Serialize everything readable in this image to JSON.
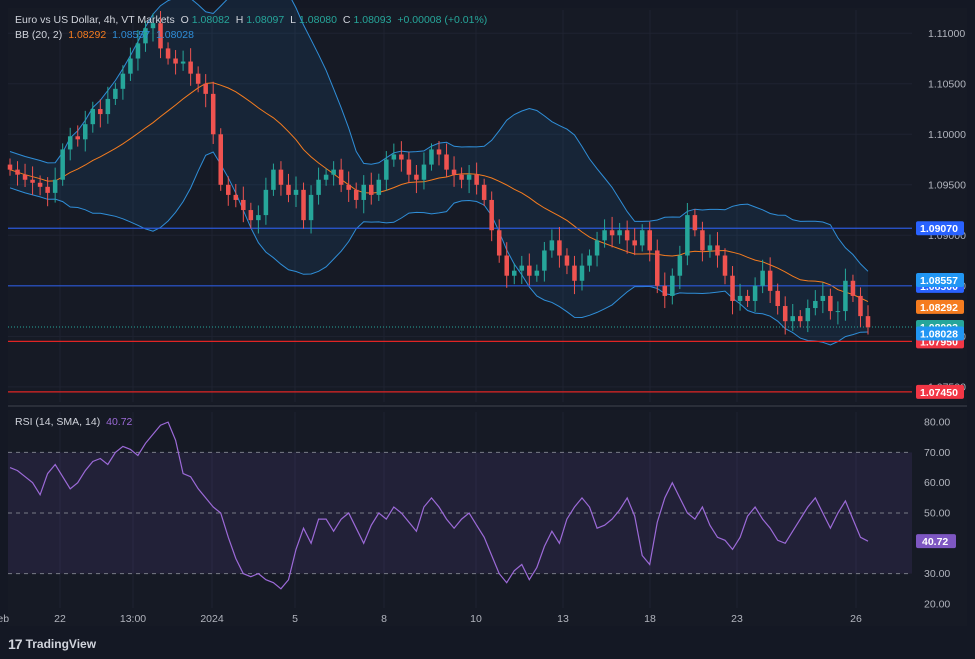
{
  "header": {
    "symbol": "Euro vs US Dollar, 4h, VT Markets",
    "o_label": "O",
    "o_val": "1.08082",
    "h_label": "H",
    "h_val": "1.08097",
    "l_label": "L",
    "l_val": "1.08080",
    "c_label": "C",
    "c_val": "1.08093",
    "change": "+0.00008 (+0.01%)"
  },
  "bb_legend": {
    "label": "BB (20, 2)",
    "basis": "1.08292",
    "upper": "1.08557",
    "lower": "1.08028"
  },
  "rsi_legend": {
    "label": "RSI (14, SMA, 14)",
    "value": "40.72"
  },
  "logo": {
    "text": "TradingView"
  },
  "colors": {
    "background": "#141824",
    "bull": "#26a69a",
    "bear": "#ef5350",
    "bb_basis": "#f57c1f",
    "bb_band": "#2f8ed8",
    "support_line": "#e02424",
    "resistance_line": "#2b59d9",
    "rsi_line": "#9c6ad8"
  },
  "chart_data": [
    {
      "type": "candlestick",
      "title": "Euro vs US Dollar, 4h, VT Markets",
      "ylim": [
        1.0735,
        1.1125
      ],
      "y_ticks": [
        "1.11000",
        "1.10500",
        "1.10000",
        "1.09500",
        "1.09000",
        "1.08500",
        "1.08000",
        "1.07500"
      ],
      "x_ticks": [
        "22",
        "13:00",
        "2024",
        "5",
        "8",
        "10",
        "13",
        "18",
        "23",
        "26",
        "Feb"
      ],
      "close_series": [
        1.0965,
        1.096,
        1.0955,
        1.0952,
        1.0948,
        1.0942,
        1.0955,
        1.0985,
        1.0998,
        1.0995,
        1.101,
        1.1025,
        1.102,
        1.1035,
        1.1045,
        1.106,
        1.1075,
        1.109,
        1.1105,
        1.111,
        1.1085,
        1.1075,
        1.107,
        1.1072,
        1.106,
        1.105,
        1.104,
        1.1,
        1.095,
        1.094,
        1.0935,
        1.0925,
        1.0915,
        1.092,
        1.0945,
        1.0965,
        1.095,
        1.094,
        1.0945,
        1.0915,
        1.094,
        1.0955,
        1.096,
        1.0965,
        1.095,
        1.0945,
        1.0935,
        1.095,
        1.094,
        1.0955,
        1.0975,
        1.098,
        1.0975,
        1.096,
        1.0955,
        1.097,
        1.0985,
        1.098,
        1.0965,
        1.096,
        1.0955,
        1.096,
        1.095,
        1.0935,
        1.0905,
        1.088,
        1.086,
        1.0865,
        1.087,
        1.086,
        1.0865,
        1.0885,
        1.0895,
        1.088,
        1.087,
        1.0855,
        1.087,
        1.088,
        1.0895,
        1.0905,
        1.09,
        1.0905,
        1.0895,
        1.089,
        1.0905,
        1.0885,
        1.085,
        1.084,
        1.086,
        1.088,
        1.092,
        1.0905,
        1.0885,
        1.089,
        1.088,
        1.086,
        1.0835,
        1.084,
        1.0835,
        1.085,
        1.0865,
        1.0845,
        1.083,
        1.0815,
        1.082,
        1.0815,
        1.0828,
        1.0835,
        1.084,
        1.0825,
        1.0825,
        1.0855,
        1.084,
        1.082,
        1.0809
      ],
      "horizontal_levels": [
        {
          "label": "1.09070",
          "value": 1.0907,
          "color": "#2b59d9"
        },
        {
          "label": "1.08500",
          "value": 1.085,
          "color": "#2b59d9"
        },
        {
          "label": "1.07950",
          "value": 1.0795,
          "color": "#e02424"
        },
        {
          "label": "1.07450",
          "value": 1.0745,
          "color": "#e02424"
        }
      ],
      "price_tags": [
        {
          "label": "1.08557",
          "value": 1.08557,
          "color": "#2196f3"
        },
        {
          "label": "1.08292",
          "value": 1.08292,
          "color": "#f57c1f"
        },
        {
          "label": "1.08093",
          "value": 1.08093,
          "color": "#26a69a"
        },
        {
          "label": "1.08028",
          "value": 1.08028,
          "color": "#2196f3"
        }
      ]
    },
    {
      "type": "line",
      "title": "RSI (14, SMA, 14)",
      "ylim": [
        18,
        84
      ],
      "y_ticks": [
        "80.00",
        "70.00",
        "60.00",
        "50.00",
        "40.00",
        "30.00",
        "20.00"
      ],
      "levels": [
        70,
        50,
        30
      ],
      "values": [
        65,
        64,
        62,
        60,
        56,
        63,
        66,
        62,
        58,
        60,
        64,
        67,
        68,
        66,
        70,
        72,
        71,
        69,
        73,
        76,
        79,
        80,
        74,
        63,
        62,
        58,
        55,
        52,
        50,
        42,
        35,
        30,
        29,
        30,
        28,
        27,
        25,
        28,
        38,
        45,
        40,
        48,
        48,
        44,
        48,
        50,
        45,
        40,
        46,
        50,
        48,
        52,
        50,
        47,
        44,
        52,
        55,
        52,
        48,
        45,
        48,
        50,
        46,
        42,
        36,
        30,
        27,
        31,
        33,
        28,
        32,
        39,
        44,
        40,
        48,
        52,
        55,
        52,
        45,
        46,
        48,
        51,
        55,
        49,
        36,
        33,
        47,
        55,
        60,
        55,
        50,
        48,
        52,
        46,
        42,
        41,
        38,
        42,
        49,
        52,
        48,
        45,
        41,
        40,
        44,
        48,
        52,
        55,
        50,
        45,
        50,
        54,
        48,
        42,
        40.72
      ],
      "current_label": "40.72"
    }
  ]
}
